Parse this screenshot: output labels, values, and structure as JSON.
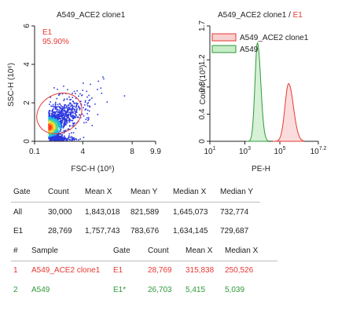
{
  "colors": {
    "axis": "#222222",
    "gate": "#e53935",
    "red": "#e53935",
    "green": "#2e9a3a",
    "red_fill": "#f9d0d0",
    "green_fill": "#c8ecc8",
    "table_line": "#bdbdbd"
  },
  "chart_data": [
    {
      "type": "scatter",
      "title": "A549_ACE2 clone1",
      "xlabel": "FSC-H (10⁶)",
      "ylabel": "SSC-H (10⁶)",
      "xlim": [
        0.1,
        9.9
      ],
      "ylim": [
        0,
        6
      ],
      "xticks": [
        "0.1",
        "4",
        "8",
        "9.9"
      ],
      "yticks": [
        "0",
        "2",
        "4",
        "6"
      ],
      "gate": {
        "name": "E1",
        "percent": "95.90%",
        "center": [
          2.1,
          1.45
        ],
        "radii": [
          1.9,
          1.0
        ],
        "rotation_deg": -30
      },
      "density": {
        "center": [
          1.2,
          0.75
        ],
        "spread": [
          1.1,
          0.55
        ],
        "correlation": 0.75
      }
    },
    {
      "type": "area",
      "title_parts": [
        "A549_ACE2 clone1",
        " / ",
        "E1"
      ],
      "xlabel": "PE-H",
      "ylabel": "Count (10³)",
      "xscale": "log",
      "xlim": [
        1,
        7.2
      ],
      "ylim": [
        0,
        1.7
      ],
      "xticks": [
        {
          "v": 1,
          "l": "1"
        },
        {
          "v": 3,
          "l": "3"
        },
        {
          "v": 5,
          "l": "5"
        },
        {
          "v": 7.2,
          "l": "7.2"
        }
      ],
      "yticks": [
        {
          "v": 0,
          "l": "0"
        },
        {
          "v": 0.4,
          "l": "0.4"
        },
        {
          "v": 0.8,
          "l": "0.8"
        },
        {
          "v": 1.2,
          "l": "1.2"
        },
        {
          "v": 1.7,
          "l": "1.7"
        }
      ],
      "legend_position": "top-right",
      "series": [
        {
          "name": "A549_ACE2 clone1",
          "color": "#e53935",
          "peak_log10": 5.5,
          "peak_count": 0.85,
          "width": 0.22
        },
        {
          "name": "A549",
          "color": "#2e9a3a",
          "peak_log10": 3.72,
          "peak_count": 1.45,
          "width": 0.15
        }
      ]
    }
  ],
  "gate_table": {
    "headers": [
      "Gate",
      "Count",
      "Mean X",
      "Mean Y",
      "Median X",
      "Median Y"
    ],
    "rows": [
      [
        "All",
        "30,000",
        "1,843,018",
        "821,589",
        "1,645,073",
        "732,774"
      ],
      [
        "E1",
        "28,769",
        "1,757,743",
        "783,676",
        "1,634,145",
        "729,687"
      ]
    ]
  },
  "sample_table": {
    "headers": [
      "#",
      "Sample",
      "Gate",
      "Count",
      "Mean X",
      "Median X"
    ],
    "rows": [
      {
        "cells": [
          "1",
          "A549_ACE2 clone1",
          "E1",
          "28,769",
          "315,838",
          "250,526"
        ],
        "color": "#e53935"
      },
      {
        "cells": [
          "2",
          "A549",
          "E1*",
          "26,703",
          "5,415",
          "5,039"
        ],
        "color": "#2e9a3a"
      }
    ]
  }
}
